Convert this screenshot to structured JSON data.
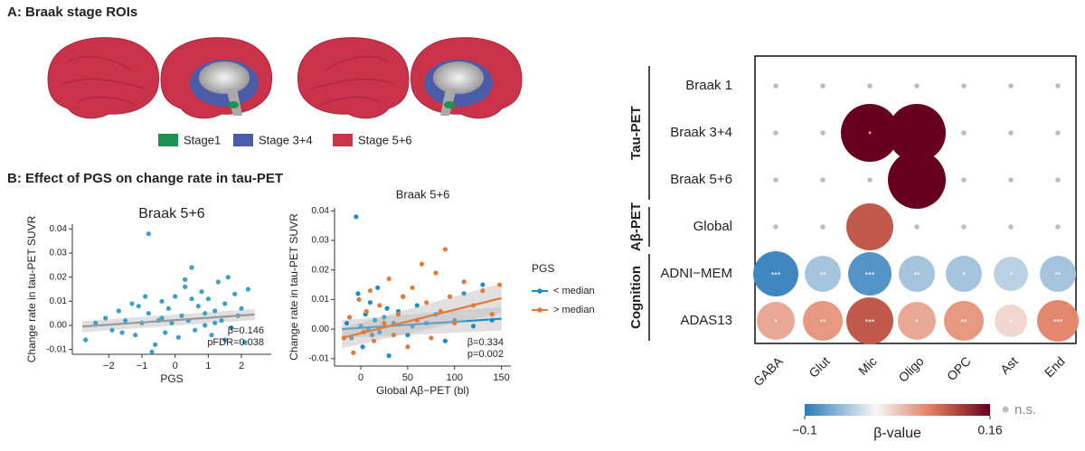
{
  "panel_a": {
    "title": "A: Braak stage ROIs",
    "legend": [
      {
        "name": "Stage1",
        "color": "#1a9350"
      },
      {
        "name": "Stage 3+4",
        "color": "#4a5ba8"
      },
      {
        "name": "Stage 5+6",
        "color": "#c8334a"
      }
    ]
  },
  "panel_b": {
    "title": "B: Effect of PGS on change rate in tau-PET"
  },
  "chart_data": [
    {
      "type": "scatter",
      "title": "Braak 5+6",
      "xlabel": "PGS",
      "ylabel": "Change rate in tau-PET SUVR",
      "xlim": [
        -3.1,
        2.9
      ],
      "xticks": [
        {
          "value": -2,
          "label": "−2"
        },
        {
          "value": -1,
          "label": "−1"
        },
        0,
        1,
        2
      ],
      "ylim": [
        -0.012,
        0.042
      ],
      "yticks": [
        {
          "value": -0.01,
          "label": "-0.01"
        },
        {
          "value": 0,
          "label": "0.00"
        },
        {
          "value": 0.01,
          "label": "0.01"
        },
        {
          "value": 0.02,
          "label": "0.02"
        },
        {
          "value": 0.03,
          "label": "0.03"
        },
        {
          "value": 0.04,
          "label": "0.04"
        }
      ],
      "annotations": [
        "β=0.146",
        "pFDR=0.038"
      ],
      "series": [
        {
          "color": "#3aa0c8",
          "x": [
            -2.7,
            -2.4,
            -2.1,
            -1.9,
            -1.7,
            -1.5,
            -1.3,
            -1.2,
            -1.0,
            -0.9,
            -0.8,
            -0.8,
            -0.6,
            -0.5,
            -0.4,
            -0.3,
            -0.2,
            -0.1,
            0.0,
            0.1,
            0.2,
            0.3,
            0.4,
            0.5,
            0.6,
            0.7,
            0.8,
            0.9,
            1.0,
            1.1,
            1.2,
            1.3,
            1.4,
            1.5,
            1.6,
            1.7,
            1.8,
            1.9,
            2.0,
            2.1,
            2.2,
            -1.1,
            -0.7,
            0.3,
            0.9,
            1.5,
            -0.4,
            0.5,
            1.2,
            -1.6
          ],
          "y": [
            -0.006,
            0.001,
            0.003,
            -0.002,
            0.006,
            0.002,
            0.009,
            -0.004,
            0.001,
            0.012,
            0.038,
            0.005,
            -0.008,
            0.002,
            0.01,
            -0.003,
            0.007,
            0.001,
            0.012,
            -0.005,
            0.004,
            0.016,
            0.002,
            0.024,
            -0.002,
            0.008,
            0.014,
            0.0,
            0.011,
            -0.004,
            0.006,
            0.018,
            0.002,
            0.009,
            0.02,
            -0.001,
            0.013,
            0.004,
            0.007,
            -0.007,
            0.015,
            0.008,
            -0.011,
            0.019,
            0.005,
            -0.006,
            0.003,
            0.011,
            0.001,
            -0.003
          ],
          "trend": {
            "color": "#9a9a9a",
            "x": [
              -2.8,
              2.4
            ],
            "y": [
              -0.0005,
              0.0045
            ],
            "lower": [
              -0.0028,
              0.0022
            ],
            "upper": [
              0.0018,
              0.0068
            ]
          }
        }
      ]
    },
    {
      "type": "scatter",
      "title": "Braak 5+6",
      "xlabel": "Global Aβ−PET (bl)",
      "ylabel": "Change rate in tau-PET SUVR",
      "xlim": [
        -28,
        160
      ],
      "xticks": [
        0,
        50,
        100,
        150
      ],
      "ylim": [
        -0.0125,
        0.041
      ],
      "yticks": [
        {
          "value": -0.01,
          "label": "-0.01"
        },
        {
          "value": 0,
          "label": "0.00"
        },
        {
          "value": 0.01,
          "label": "0.01"
        },
        {
          "value": 0.02,
          "label": "0.02"
        },
        {
          "value": 0.03,
          "label": "0.03"
        },
        {
          "value": 0.04,
          "label": "0.04"
        }
      ],
      "annotations": [
        "β=0.334",
        "p=0.002"
      ],
      "legend_title": "PGS",
      "series": [
        {
          "name": "< median",
          "color": "#1f8bc4",
          "x": [
            -15,
            -10,
            -5,
            -3,
            0,
            2,
            5,
            8,
            10,
            12,
            15,
            18,
            20,
            25,
            28,
            30,
            35,
            40,
            45,
            50,
            55,
            60,
            70,
            80,
            90,
            100,
            110,
            120,
            130,
            140
          ],
          "y": [
            0.002,
            -0.003,
            0.038,
            0.012,
            0.001,
            -0.006,
            0.005,
            0.0,
            0.009,
            -0.002,
            0.003,
            0.014,
            -0.001,
            0.004,
            0.007,
            -0.009,
            0.002,
            0.006,
            0.011,
            -0.002,
            0.001,
            0.008,
            0.002,
            0.005,
            -0.004,
            0.003,
            0.012,
            0.001,
            0.015,
            0.003
          ],
          "trend": {
            "color": "#1f8bc4",
            "x": [
              -20,
              150
            ],
            "y": [
              0.0,
              0.0035
            ],
            "lower": [
              -0.003,
              -0.0005
            ],
            "upper": [
              0.003,
              0.0075
            ]
          }
        },
        {
          "name": "> median",
          "color": "#e07b39",
          "x": [
            -18,
            -12,
            -8,
            -2,
            3,
            6,
            10,
            14,
            20,
            25,
            30,
            35,
            40,
            45,
            50,
            55,
            60,
            65,
            70,
            75,
            80,
            85,
            90,
            95,
            100,
            110,
            120,
            130,
            140,
            148
          ],
          "y": [
            -0.003,
            0.004,
            -0.008,
            0.01,
            -0.001,
            0.006,
            0.013,
            -0.004,
            0.008,
            0.002,
            0.017,
            -0.002,
            0.005,
            0.011,
            -0.006,
            0.014,
            0.003,
            0.022,
            0.009,
            -0.003,
            0.019,
            0.006,
            0.027,
            0.011,
            0.002,
            0.016,
            0.008,
            0.013,
            0.005,
            0.015
          ],
          "trend": {
            "color": "#e07b39",
            "x": [
              -20,
              150
            ],
            "y": [
              -0.003,
              0.0105
            ],
            "lower": [
              -0.0065,
              0.0055
            ],
            "upper": [
              0.0005,
              0.0155
            ]
          }
        }
      ]
    },
    {
      "type": "bubble",
      "rows": [
        "Braak 1",
        "Braak 3+4",
        "Braak 5+6",
        "Global",
        "ADNI−MEM",
        "ADAS13"
      ],
      "row_groups": [
        {
          "name": "Tau-PET",
          "size": 3
        },
        {
          "name": "Aβ-PET",
          "size": 1
        },
        {
          "name": "Cognition",
          "size": 2
        }
      ],
      "columns": [
        "GABA",
        "Glut",
        "Mic",
        "Oligo",
        "OPC",
        "Ast",
        "End"
      ],
      "values": [
        [
          null,
          null,
          null,
          null,
          null,
          null,
          null
        ],
        [
          null,
          null,
          0.16,
          0.16,
          null,
          null,
          null
        ],
        [
          null,
          null,
          null,
          0.16,
          null,
          null,
          null
        ],
        [
          null,
          null,
          0.1,
          null,
          null,
          null,
          null
        ],
        [
          -0.09,
          -0.04,
          -0.08,
          -0.04,
          -0.04,
          -0.03,
          -0.04
        ],
        [
          0.05,
          0.06,
          0.1,
          0.05,
          0.06,
          0.02,
          0.07
        ]
      ],
      "significance": [
        [
          null,
          null,
          null,
          null,
          null,
          null,
          null
        ],
        [
          null,
          null,
          "*",
          null,
          null,
          null,
          null
        ],
        [
          null,
          null,
          null,
          null,
          null,
          null,
          null
        ],
        [
          null,
          null,
          null,
          null,
          null,
          null,
          null
        ],
        [
          "***",
          "**",
          "***",
          "**",
          "*",
          "*",
          "**"
        ],
        [
          "*",
          "**",
          "***",
          "*",
          "**",
          "*",
          "***"
        ]
      ],
      "clim": [
        -0.1,
        0.16
      ],
      "cticks": [
        {
          "value": -0.1,
          "label": "−0.1"
        },
        0.16
      ],
      "colorbar_label": "β-value",
      "colormap": [
        {
          "value": -0.1,
          "color": "#2b7bba"
        },
        {
          "value": 0,
          "color": "#f7f7f7"
        },
        {
          "value": 0.08,
          "color": "#e0785a"
        },
        {
          "value": 0.16,
          "color": "#67001f"
        }
      ],
      "ns_label": "n.s.",
      "ns_color": "#bdbdbd"
    }
  ]
}
